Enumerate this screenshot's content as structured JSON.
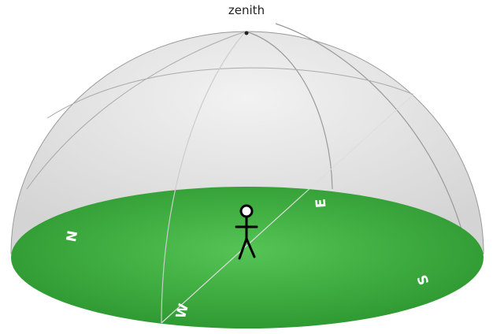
{
  "labels": {
    "zenith": "zenith",
    "north": "N",
    "east": "E",
    "south": "S",
    "west": "W"
  }
}
